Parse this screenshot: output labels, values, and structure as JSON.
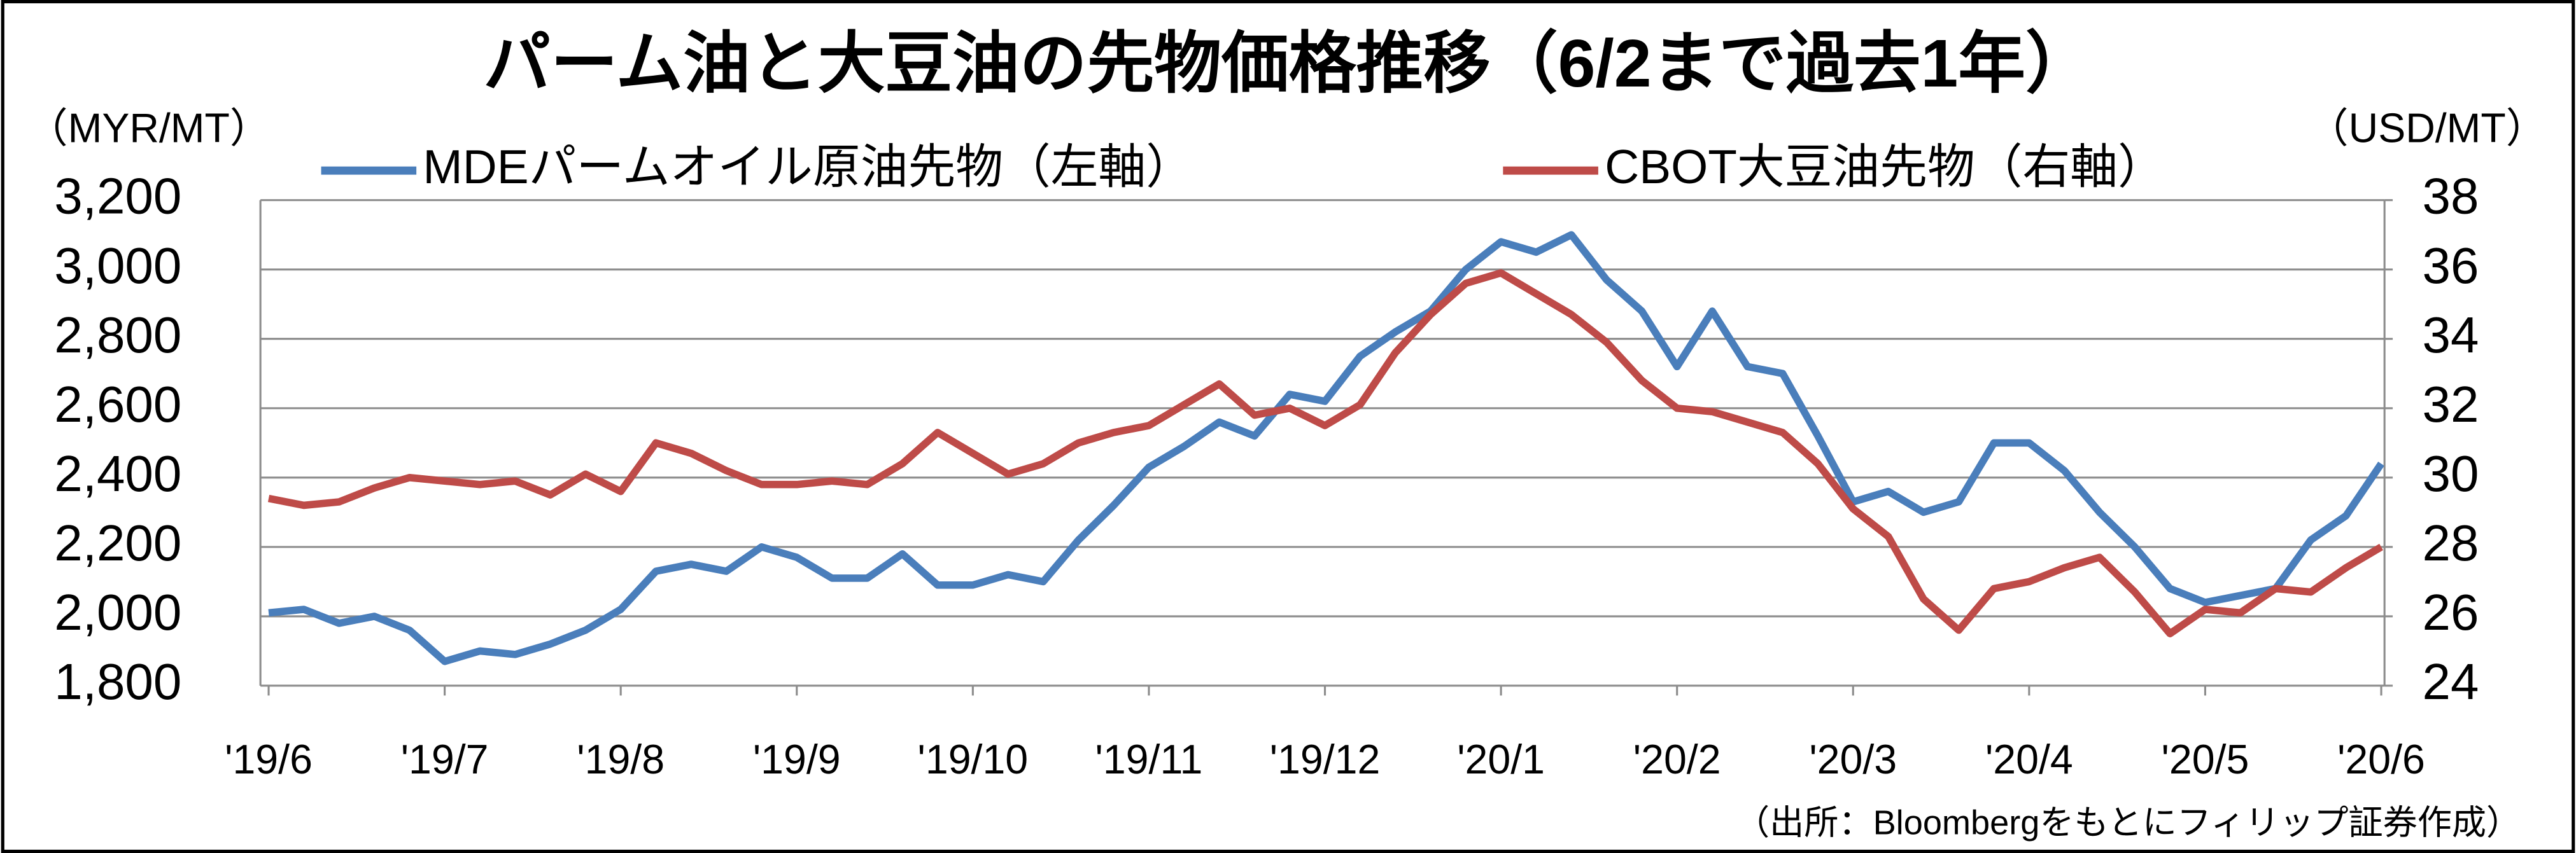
{
  "chart_data": {
    "type": "line",
    "title": "パーム油と大豆油の先物価格推移（6/2まで過去1年）",
    "y_label": "（MYR/MT）",
    "y2_label": "（USD/MT）",
    "source": "（出所：Bloombergをもとにフィリップ証券作成）",
    "categories": [
      "'19/6",
      null,
      null,
      null,
      null,
      "'19/7",
      null,
      null,
      null,
      null,
      "'19/8",
      null,
      null,
      null,
      null,
      "'19/9",
      null,
      null,
      null,
      null,
      "'19/10",
      null,
      null,
      null,
      null,
      "'19/11",
      null,
      null,
      null,
      null,
      "'19/12",
      null,
      null,
      null,
      null,
      "'20/1",
      null,
      null,
      null,
      null,
      "'20/2",
      null,
      null,
      null,
      null,
      "'20/3",
      null,
      null,
      null,
      null,
      "'20/4",
      null,
      null,
      null,
      null,
      "'20/5",
      null,
      null,
      null,
      null,
      "'20/6"
    ],
    "series": [
      {
        "name": "MDEパームオイル原油先物（左軸）",
        "color": "#4a7ebb",
        "values": [
          2010,
          2020,
          1980,
          2000,
          1960,
          1870,
          1900,
          1890,
          1920,
          1960,
          2020,
          2130,
          2150,
          2130,
          2200,
          2170,
          2110,
          2110,
          2180,
          2090,
          2090,
          2120,
          2100,
          2220,
          2320,
          2430,
          2490,
          2560,
          2520,
          2640,
          2620,
          2750,
          2820,
          2880,
          3000,
          3080,
          3050,
          3100,
          2970,
          2880,
          2720,
          2880,
          2720,
          2700,
          2520,
          2330,
          2360,
          2300,
          2330,
          2500,
          2500,
          2420,
          2300,
          2200,
          2080,
          2040,
          2060,
          2080,
          2220,
          2290,
          2440
        ]
      },
      {
        "name": "CBOT大豆油先物（右軸）",
        "color": "#be4b48",
        "axis": "y2",
        "values": [
          29.4,
          29.2,
          29.3,
          29.7,
          30.0,
          29.9,
          29.8,
          29.9,
          29.5,
          30.1,
          29.6,
          31.0,
          30.7,
          30.2,
          29.8,
          29.8,
          29.9,
          29.8,
          30.4,
          31.3,
          30.7,
          30.1,
          30.4,
          31.0,
          31.3,
          31.5,
          32.1,
          32.7,
          31.8,
          32.0,
          31.5,
          32.1,
          33.6,
          34.7,
          35.6,
          35.9,
          35.3,
          34.7,
          33.9,
          32.8,
          32.0,
          31.9,
          31.6,
          31.3,
          30.4,
          29.1,
          28.3,
          26.5,
          25.6,
          26.8,
          27.0,
          27.4,
          27.7,
          26.7,
          25.5,
          26.2,
          26.1,
          26.8,
          26.7,
          27.4,
          28.0
        ]
      }
    ],
    "ylim": [
      1800,
      3200
    ],
    "yticks": [
      {
        "value": 1800,
        "label": "1,800"
      },
      {
        "value": 2000,
        "label": "2,000"
      },
      {
        "value": 2200,
        "label": "2,200"
      },
      {
        "value": 2400,
        "label": "2,400"
      },
      {
        "value": 2600,
        "label": "2,600"
      },
      {
        "value": 2800,
        "label": "2,800"
      },
      {
        "value": 3000,
        "label": "3,000"
      },
      {
        "value": 3200,
        "label": "3,200"
      }
    ],
    "y2lim": [
      24,
      38
    ],
    "y2ticks": [
      24,
      26,
      28,
      30,
      32,
      34,
      36,
      38
    ],
    "grid": true,
    "legend": "top"
  }
}
